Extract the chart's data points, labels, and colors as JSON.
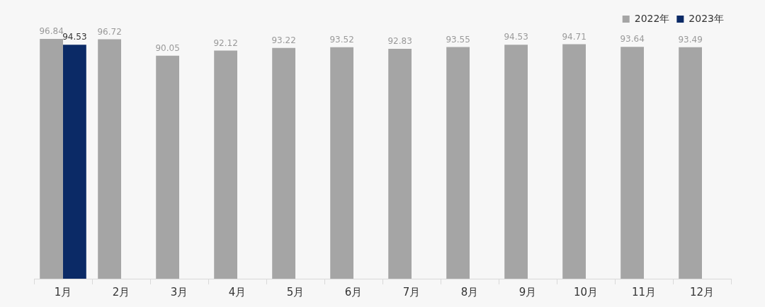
{
  "chart_data": {
    "type": "bar",
    "categories": [
      "1月",
      "2月",
      "3月",
      "4月",
      "5月",
      "6月",
      "7月",
      "8月",
      "9月",
      "10月",
      "11月",
      "12月"
    ],
    "series": [
      {
        "name": "2022年",
        "color": "#a5a5a5",
        "values": [
          96.84,
          96.72,
          90.05,
          92.12,
          93.22,
          93.52,
          92.83,
          93.55,
          94.53,
          94.71,
          93.64,
          93.49
        ]
      },
      {
        "name": "2023年",
        "color": "#0b2a66",
        "values": [
          94.53,
          null,
          null,
          null,
          null,
          null,
          null,
          null,
          null,
          null,
          null,
          null
        ]
      }
    ],
    "tick_labels": "x",
    "grid": false,
    "legend": "top right",
    "data_labels": true
  }
}
